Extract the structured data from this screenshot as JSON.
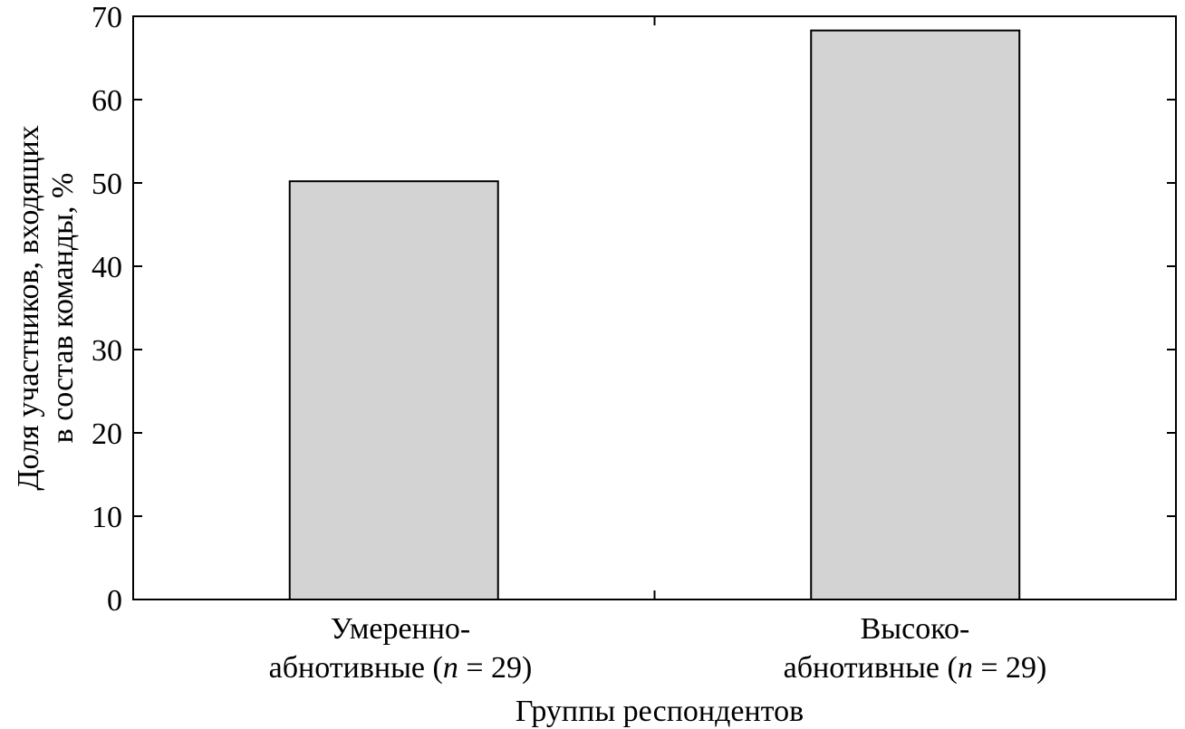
{
  "chart_data": {
    "type": "bar",
    "title": "",
    "categories": [
      {
        "line1": "Умеренно-",
        "line2_pre": "абнотивные (",
        "line2_n": "n",
        "line2_post": " = 29)"
      },
      {
        "line1": "Высоко-",
        "line2_pre": "абнотивные (",
        "line2_n": "n",
        "line2_post": " = 29)"
      }
    ],
    "values": [
      50.2,
      68.3
    ],
    "xlabel": "Группы респондентов",
    "ylabel_lines": [
      "Доля участников, входящих",
      "в состав команды, %"
    ],
    "ylim": [
      0,
      70
    ],
    "yticks": [
      0,
      10,
      20,
      30,
      40,
      50,
      60,
      70
    ],
    "grid": false,
    "legend": "none",
    "bar_color": "#d3d3d3",
    "edge_color": "#000000"
  }
}
